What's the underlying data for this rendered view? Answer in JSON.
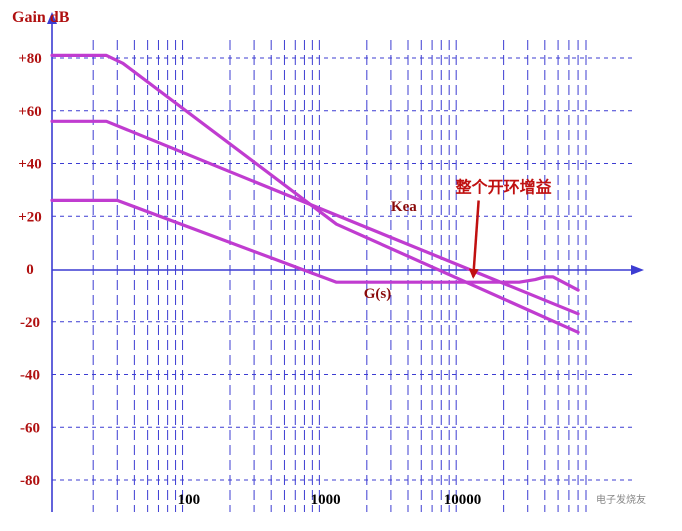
{
  "chart_data": {
    "type": "line",
    "title": "",
    "ylabel": "Gain dB",
    "xlabel": "",
    "y_ticks": [
      "+80",
      "+60",
      "+40",
      "+20",
      "0",
      "-20",
      "-40",
      "-60",
      "-80"
    ],
    "x_ticks": [
      "100",
      "1000",
      "10000"
    ],
    "xscale": "log",
    "xlim": [
      10,
      80000
    ],
    "ylim": [
      -85,
      85
    ],
    "grid": true,
    "colors": {
      "axis": "#3c3cd2",
      "grid": "#3c3cd2",
      "curve": "#c03cd0",
      "text_axis": "#b01010",
      "annotation": "#c01010"
    },
    "series": [
      {
        "x": [
          10,
          25,
          33,
          1200,
          70000
        ],
        "y": [
          81,
          81,
          78,
          17,
          -24
        ]
      },
      {
        "name": "Kea",
        "x": [
          10,
          25,
          70000
        ],
        "y": [
          56,
          56,
          -17
        ]
      },
      {
        "name": "G(s)",
        "x": [
          10,
          30,
          1200,
          26000,
          34000,
          40000,
          46000,
          70000
        ],
        "y": [
          26,
          26,
          -5,
          -5,
          -4,
          -3,
          -3,
          -8
        ]
      }
    ],
    "annotations": [
      {
        "text": "Kea",
        "x": 3000,
        "y": 22
      },
      {
        "text": "G(s)",
        "x": 1900,
        "y": -11
      },
      {
        "text": "整个开环增益",
        "x": 20000,
        "y": 29,
        "arrow_to": [
          12000,
          -3
        ]
      }
    ]
  },
  "watermark": "电子发烧友"
}
